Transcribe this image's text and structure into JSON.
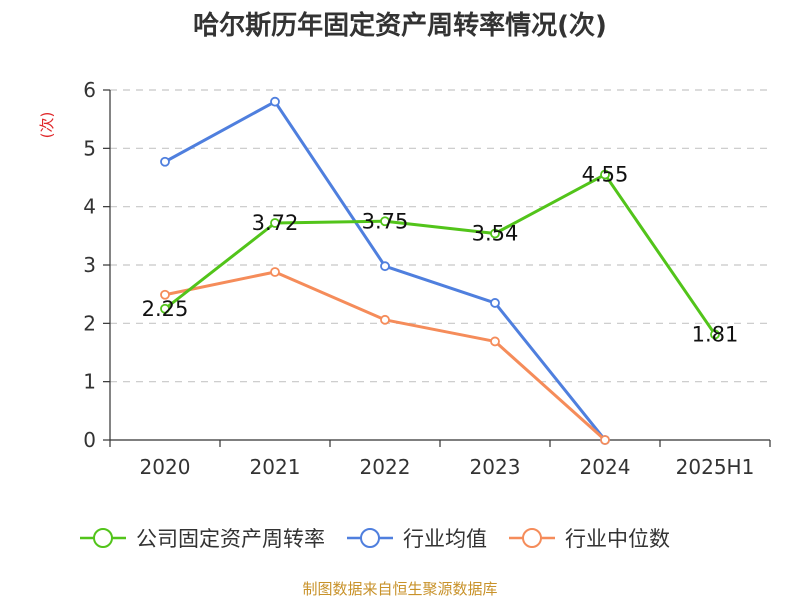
{
  "chart_data": {
    "type": "line",
    "title": "哈尔斯历年固定资产周转率情况(次)",
    "ylabel": "(次)",
    "categories": [
      "2020",
      "2021",
      "2022",
      "2023",
      "2024",
      "2025H1"
    ],
    "ylim": [
      0,
      6
    ],
    "yticks": [
      0,
      1,
      2,
      3,
      4,
      5,
      6
    ],
    "grid": true,
    "legend_position": "bottom",
    "series": [
      {
        "name": "公司固定资产周转率",
        "color": "#52c41a",
        "values": [
          2.25,
          3.72,
          3.75,
          3.54,
          4.55,
          1.81
        ],
        "labels": [
          "2.25",
          "3.72",
          "3.75",
          "3.54",
          "4.55",
          "1.81"
        ]
      },
      {
        "name": "行业均值",
        "color": "#4f7fde",
        "values": [
          4.77,
          5.8,
          2.98,
          2.35,
          0.0,
          null
        ]
      },
      {
        "name": "行业中位数",
        "color": "#f58c5a",
        "values": [
          2.49,
          2.88,
          2.06,
          1.69,
          0.0,
          null
        ]
      }
    ],
    "source": "制图数据来自恒生聚源数据库"
  }
}
